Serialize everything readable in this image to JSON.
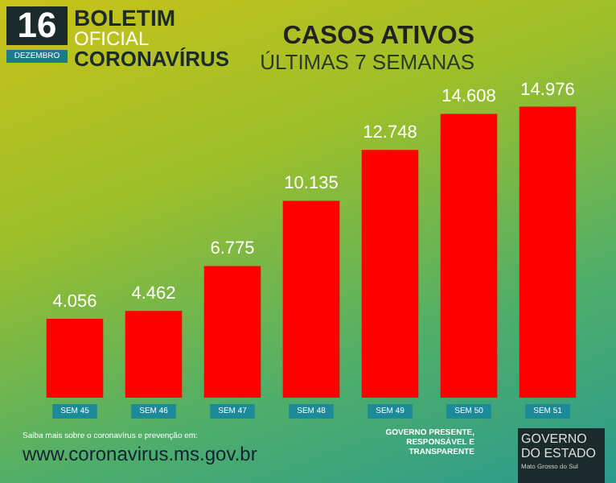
{
  "chart_data": {
    "type": "bar",
    "title": "CASOS ATIVOS",
    "subtitle": "ÚLTIMAS 7 SEMANAS",
    "annotations": [
      "16",
      "DEZEMBRO",
      "BOLETIM",
      "OFICIAL",
      "CORONAVÍRUS",
      "Saiba mais sobre o coronavírus e prevenção em:",
      "www.coronavirus.ms.gov.br",
      "GOVERNO PRESENTE, RESPONSÁVEL E TRANSPARENTE",
      "GOVERNO DO ESTADO",
      "Mato Grosso do Sul"
    ],
    "categories": [
      "SEM 45",
      "SEM 46",
      "SEM 47",
      "SEM 48",
      "SEM 49",
      "SEM 50",
      "SEM 51"
    ],
    "values": [
      4056,
      4462,
      6775,
      10135,
      12748,
      14608,
      14976
    ],
    "value_labels": [
      "4.056",
      "4.462",
      "6.775",
      "10.135",
      "12.748",
      "14.608",
      "14.976"
    ],
    "color": "#ff0000",
    "tick_labels": "x"
  }
}
